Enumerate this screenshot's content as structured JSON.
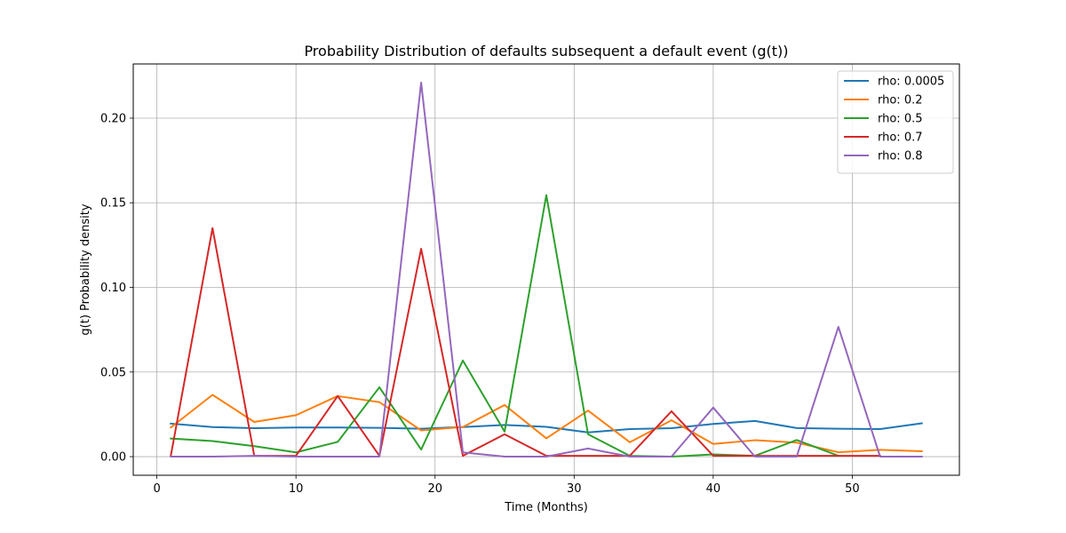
{
  "chart_data": {
    "type": "line",
    "title": "Probability Distribution of defaults subsequent a default event (g(t))",
    "xlabel": "Time (Months)",
    "ylabel": "g(t) Probability density",
    "xlim": [
      -1.7,
      57.7
    ],
    "ylim": [
      -0.011,
      0.232
    ],
    "xticks": [
      0,
      10,
      20,
      30,
      40,
      50
    ],
    "xtick_labels": [
      "0",
      "10",
      "20",
      "30",
      "40",
      "50"
    ],
    "yticks": [
      0.0,
      0.05,
      0.1,
      0.15,
      0.2
    ],
    "ytick_labels": [
      "0.00",
      "0.05",
      "0.10",
      "0.15",
      "0.20"
    ],
    "grid": true,
    "legend_position": "top-right",
    "x": [
      1,
      4,
      7,
      10,
      13,
      16,
      19,
      22,
      25,
      28,
      31,
      34,
      37,
      40,
      43,
      46,
      49,
      52,
      55
    ],
    "series": [
      {
        "name": "rho: 0.0005",
        "color": "#1f77b4",
        "values": [
          0.0195,
          0.0175,
          0.0168,
          0.0172,
          0.0172,
          0.017,
          0.0165,
          0.0175,
          0.0187,
          0.0176,
          0.0143,
          0.0163,
          0.0168,
          0.0193,
          0.0211,
          0.0169,
          0.0165,
          0.0163,
          0.0197
        ]
      },
      {
        "name": "rho: 0.2",
        "color": "#ff7f0e",
        "values": [
          0.0172,
          0.0365,
          0.0205,
          0.0245,
          0.0358,
          0.0322,
          0.0155,
          0.0175,
          0.0305,
          0.0108,
          0.0272,
          0.0085,
          0.0215,
          0.0075,
          0.0097,
          0.0083,
          0.0026,
          0.004,
          0.0032
        ]
      },
      {
        "name": "rho: 0.5",
        "color": "#2ca02c",
        "values": [
          0.0107,
          0.0092,
          0.0062,
          0.0025,
          0.0087,
          0.041,
          0.0042,
          0.0568,
          0.0148,
          0.1545,
          0.0132,
          0.0005,
          0.0,
          0.0013,
          0.0005,
          0.0098,
          0.0005,
          null,
          null
        ]
      },
      {
        "name": "rho: 0.7",
        "color": "#d62728",
        "values": [
          0.0005,
          0.135,
          0.0005,
          0.0005,
          0.0358,
          0.0005,
          0.1228,
          0.0005,
          0.0132,
          0.0005,
          0.0005,
          0.0005,
          0.0268,
          0.0005,
          0.0005,
          0.0005,
          0.0005,
          0.0005,
          null
        ]
      },
      {
        "name": "rho: 0.8",
        "color": "#9467bd",
        "values": [
          0.0,
          0.0,
          0.0005,
          0.0,
          0.0,
          0.0,
          0.221,
          0.0025,
          0.0,
          0.0,
          0.0048,
          0.0,
          0.0,
          0.029,
          0.0,
          0.0,
          0.0767,
          0.0,
          0.0
        ]
      }
    ]
  }
}
